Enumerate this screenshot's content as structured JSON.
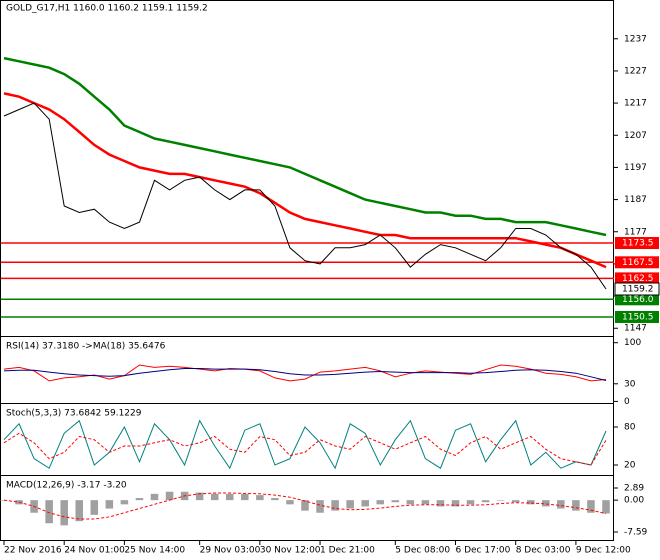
{
  "chart_data": [
    {
      "type": "line",
      "title": "GOLD_G17,H1  1160.0 1160.2 1159.1 1159.2",
      "categories": [
        "22 Nov 2016",
        null,
        null,
        null,
        "24 Nov 01:00",
        null,
        null,
        null,
        "25 Nov 14:00",
        null,
        null,
        null,
        null,
        "29 Nov 03:00",
        null,
        null,
        null,
        "30 Nov 12:00",
        null,
        null,
        null,
        "1 Dec 21:00",
        null,
        null,
        null,
        null,
        "5 Dec 08:00",
        null,
        null,
        null,
        "6 Dec 17:00",
        null,
        null,
        null,
        "8 Dec 03:00",
        null,
        null,
        null,
        "9 Dec 12:00",
        null,
        null
      ],
      "series": [
        {
          "color": "#008000",
          "style": "line",
          "width": 2.5,
          "values": [
            1231,
            1230,
            1229,
            1228,
            1226,
            1223,
            1219,
            1215,
            1210,
            1208,
            1206,
            1205,
            1204,
            1203,
            1202,
            1201,
            1200,
            1199,
            1198,
            1197,
            1195,
            1193,
            1191,
            1189,
            1187,
            1186,
            1185,
            1184,
            1183,
            1183,
            1182,
            1182,
            1181,
            1181,
            1180,
            1180,
            1180,
            1179,
            1178,
            1177,
            1176
          ]
        },
        {
          "color": "#ff0000",
          "style": "line",
          "width": 2.5,
          "values": [
            1220,
            1219,
            1217,
            1215,
            1212,
            1208,
            1204,
            1201,
            1199,
            1197,
            1196,
            1195,
            1195,
            1194,
            1193,
            1192,
            1191,
            1189,
            1186,
            1183,
            1181,
            1180,
            1179,
            1178,
            1177,
            1176,
            1176,
            1175,
            1175,
            1175,
            1175,
            1175,
            1175,
            1175,
            1175,
            1174,
            1173,
            1172,
            1170,
            1168,
            1166
          ]
        },
        {
          "color": "#000000",
          "style": "line",
          "width": 1,
          "values": [
            1213,
            1215,
            1217,
            1212,
            1185,
            1183,
            1184,
            1180,
            1178,
            1180,
            1193,
            1190,
            1193,
            1194,
            1190,
            1187,
            1190,
            1190,
            1185,
            1172,
            1168,
            1167,
            1172,
            1172,
            1173,
            1176,
            1172,
            1166,
            1170,
            1173,
            1172,
            1170,
            1168,
            1172,
            1178,
            1178,
            1176,
            1172,
            1170,
            1166,
            1159.2
          ]
        }
      ],
      "price_lines": [
        {
          "value": 1173.5,
          "color": "#ff0000"
        },
        {
          "value": 1167.5,
          "color": "#ff0000"
        },
        {
          "value": 1162.5,
          "color": "#ff0000"
        },
        {
          "value": 1156,
          "label": "1156.0",
          "color": "#008000"
        },
        {
          "value": 1150.5,
          "color": "#008000"
        }
      ],
      "last_price": 1159.2,
      "ylim": [
        1144.9,
        1244.7
      ],
      "yticks": [
        1237,
        1227,
        1217,
        1207,
        1197,
        1187,
        1177,
        1167,
        1157,
        1147
      ],
      "grid": false
    },
    {
      "type": "line",
      "title": "RSI(14) 37.3180 ->MA(18) 35.6476",
      "series": [
        {
          "color": "#ff0000",
          "style": "line",
          "width": 1,
          "values": [
            55,
            58,
            52,
            35,
            40,
            42,
            45,
            38,
            44,
            62,
            58,
            60,
            58,
            55,
            52,
            56,
            55,
            52,
            40,
            35,
            38,
            50,
            52,
            55,
            58,
            52,
            42,
            48,
            52,
            50,
            48,
            46,
            54,
            62,
            60,
            55,
            48,
            46,
            42,
            35,
            37.318
          ]
        },
        {
          "color": "#000080",
          "style": "line",
          "width": 1,
          "values": [
            52,
            53,
            53,
            50,
            47,
            45,
            44,
            43,
            44,
            48,
            51,
            54,
            56,
            56,
            55,
            55,
            55,
            54,
            51,
            47,
            45,
            45,
            46,
            48,
            50,
            51,
            50,
            49,
            49,
            49,
            49,
            48,
            49,
            51,
            53,
            54,
            53,
            51,
            48,
            42,
            35.6476
          ]
        }
      ],
      "ylim": [
        -1,
        108
      ],
      "yticks": [
        100,
        30,
        0
      ],
      "grid": false
    },
    {
      "type": "line",
      "title": "Stoch(5,3,3) 73.6842 59.1229",
      "series": [
        {
          "color": "#008080",
          "style": "line",
          "width": 1,
          "values": [
            60,
            85,
            30,
            15,
            70,
            90,
            20,
            40,
            80,
            25,
            85,
            60,
            20,
            90,
            50,
            15,
            75,
            85,
            20,
            30,
            80,
            55,
            15,
            85,
            70,
            20,
            60,
            90,
            30,
            15,
            75,
            85,
            25,
            60,
            90,
            20,
            40,
            15,
            25,
            20,
            73.6842
          ]
        },
        {
          "color": "#ff0000",
          "style": "dashed",
          "width": 1,
          "values": [
            55,
            70,
            55,
            30,
            40,
            65,
            60,
            40,
            50,
            50,
            55,
            60,
            50,
            55,
            65,
            45,
            40,
            65,
            60,
            35,
            40,
            60,
            50,
            45,
            65,
            55,
            45,
            55,
            65,
            45,
            35,
            55,
            65,
            45,
            55,
            65,
            45,
            30,
            25,
            20,
            59.1229
          ]
        }
      ],
      "ylim": [
        5.8,
        114.7
      ],
      "yticks": [
        80,
        20
      ],
      "grid": false
    },
    {
      "type": "bar",
      "title": "MACD(12,26,9) -3.17 -3.20",
      "series": [
        {
          "color": "#a0a0a0",
          "style": "bar",
          "width": 1,
          "values": [
            0,
            -1,
            -3,
            -5.5,
            -6,
            -5,
            -3.5,
            -2,
            -1,
            0.5,
            1.5,
            2,
            2,
            1.8,
            1.5,
            1.5,
            1.5,
            1.2,
            0.5,
            -1,
            -2.5,
            -3,
            -2.5,
            -2,
            -1.5,
            -1,
            -0.5,
            -1,
            -1,
            -1.5,
            -1.5,
            -1,
            -0.5,
            0,
            -0.5,
            -1,
            -1.5,
            -2,
            -2.5,
            -3,
            -3.17
          ]
        },
        {
          "color": "#ff0000",
          "style": "dashed",
          "width": 1,
          "values": [
            0,
            -0.5,
            -1.5,
            -3,
            -4,
            -4.5,
            -4.5,
            -4,
            -3,
            -2,
            -1,
            0,
            1,
            1.5,
            1.7,
            1.7,
            1.6,
            1.5,
            1.2,
            0.7,
            -0.2,
            -1.2,
            -2,
            -2.3,
            -2.2,
            -1.9,
            -1.5,
            -1.2,
            -1.1,
            -1.1,
            -1.2,
            -1.2,
            -1.1,
            -0.8,
            -0.6,
            -0.7,
            -0.9,
            -1.3,
            -1.8,
            -2.4,
            -3.2
          ]
        }
      ],
      "ylim": [
        -9.49,
        5.51
      ],
      "yticks": [
        2.89,
        {
          "value": 0,
          "label": "0.00"
        },
        -7.59
      ],
      "grid": false
    }
  ]
}
